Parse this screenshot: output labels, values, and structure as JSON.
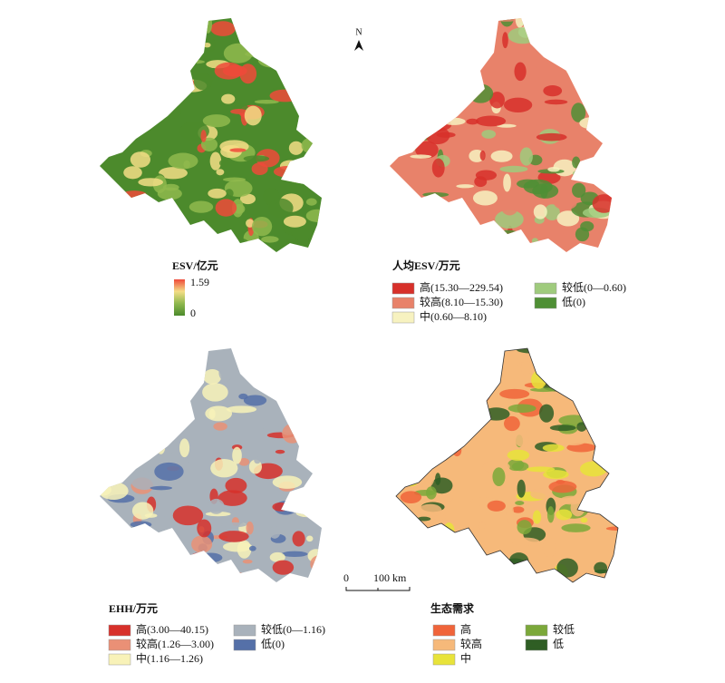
{
  "north_arrow": "N",
  "panels": [
    {
      "legend_title": "ESV/亿元",
      "max_label": 1.59,
      "min_label": 0,
      "colors": [
        "#ef4a3a",
        "#f3dd86",
        "#8fb84e",
        "#4c8a2c"
      ]
    },
    {
      "legend_title": "人均ESV/万元",
      "items": [
        {
          "label": "高(15.30—229.54)",
          "color": "#d7302a"
        },
        {
          "label": "较高(8.10—15.30)",
          "color": "#e8826a"
        },
        {
          "label": "中(0.60—8.10)",
          "color": "#f7f2c0"
        },
        {
          "label": "较低(0—0.60)",
          "color": "#9fcb7d"
        },
        {
          "label": "低(0)",
          "color": "#4f8f35"
        }
      ]
    },
    {
      "legend_title": "EHH/万元",
      "items": [
        {
          "label": "高(3.00—40.15)",
          "color": "#d7302a"
        },
        {
          "label": "较高(1.26—3.00)",
          "color": "#ea9076"
        },
        {
          "label": "中(1.16—1.26)",
          "color": "#f8f2b8"
        },
        {
          "label": "较低(0—1.16)",
          "color": "#a9b2bb"
        },
        {
          "label": "低(0)",
          "color": "#5570a8"
        }
      ]
    },
    {
      "legend_title": "生态需求",
      "items": [
        {
          "label": "高",
          "color": "#f0643a"
        },
        {
          "label": "较高",
          "color": "#f6b97a"
        },
        {
          "label": "中",
          "color": "#e8e33a"
        },
        {
          "label": "较低",
          "color": "#7ba83a"
        },
        {
          "label": "低",
          "color": "#2f5e24"
        }
      ]
    }
  ],
  "scale_bar": {
    "start": 0,
    "end_label": "100 km"
  }
}
